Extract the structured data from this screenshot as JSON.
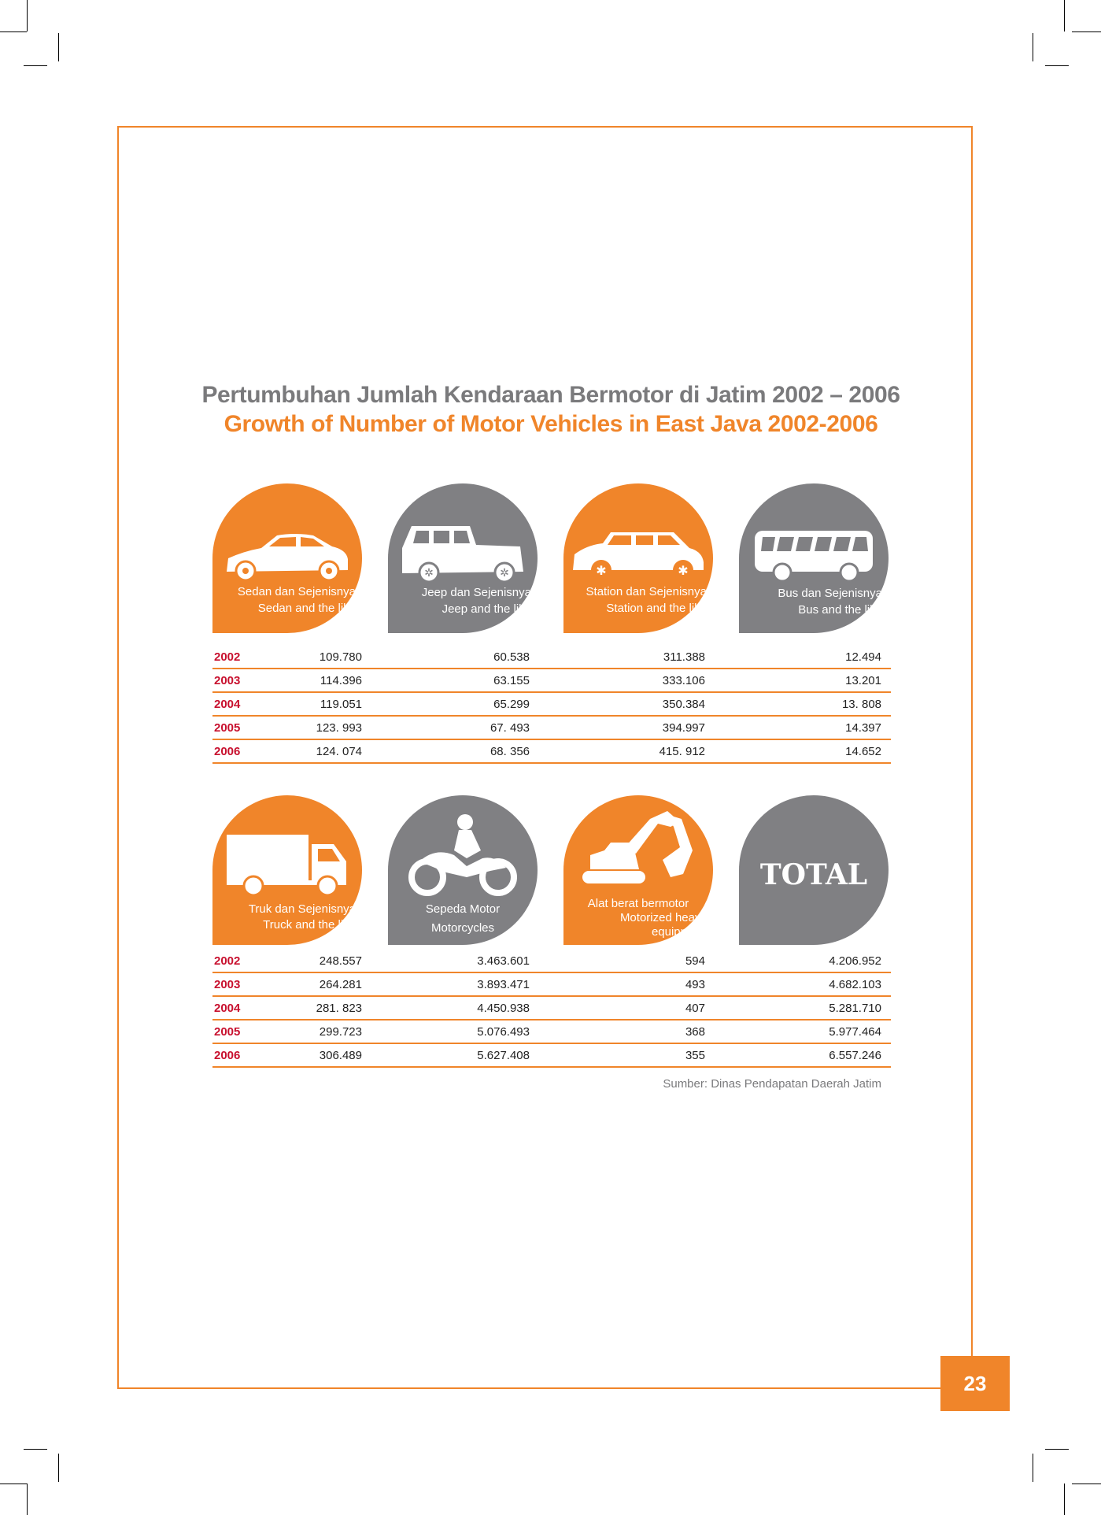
{
  "page": {
    "number": "23"
  },
  "title": {
    "indonesian": "Pertumbuhan Jumlah Kendaraan Bermotor di Jatim 2002 – 2006",
    "english": "Growth of Number of Motor Vehicles in East Java 2002-2006"
  },
  "colors": {
    "accent": "#f0852a",
    "gray": "#808083",
    "year": "#c8102e"
  },
  "top_categories": [
    {
      "icon": "sedan-icon",
      "label_id": "Sedan dan Sejenisnya",
      "label_en": "Sedan and the like",
      "color": "orange"
    },
    {
      "icon": "jeep-icon",
      "label_id": "Jeep dan Sejenisnya",
      "label_en": "Jeep and the like",
      "color": "gray"
    },
    {
      "icon": "station-wagon-icon",
      "label_id": "Station dan Sejenisnya",
      "label_en": "Station and the like",
      "color": "orange"
    },
    {
      "icon": "bus-icon",
      "label_id": "Bus dan Sejenisnya",
      "label_en": "Bus and the like",
      "color": "gray"
    }
  ],
  "top_rows": [
    {
      "year": "2002",
      "values": [
        "109.780",
        "60.538",
        "311.388",
        "12.494"
      ]
    },
    {
      "year": "2003",
      "values": [
        "114.396",
        "63.155",
        "333.106",
        "13.201"
      ]
    },
    {
      "year": "2004",
      "values": [
        "119.051",
        "65.299",
        "350.384",
        "13. 808"
      ]
    },
    {
      "year": "2005",
      "values": [
        "123. 993",
        "67. 493",
        "394.997",
        "14.397"
      ]
    },
    {
      "year": "2006",
      "values": [
        "124.  074",
        "68. 356",
        "415. 912",
        "14.652"
      ]
    }
  ],
  "bottom_categories": [
    {
      "icon": "truck-icon",
      "label_id": "Truk dan Sejenisnya",
      "label_en": "Truck and the like",
      "color": "orange"
    },
    {
      "icon": "motorcycle-icon",
      "label_id": "Sepeda Motor",
      "label_en": "Motorcycles",
      "color": "gray"
    },
    {
      "icon": "excavator-icon",
      "label_id": "Alat berat bermotor",
      "label_en": "Motorized heavy equipment",
      "color": "orange"
    },
    {
      "icon": "total-badge",
      "label_id": "TOTAL",
      "color": "gray"
    }
  ],
  "bottom_rows": [
    {
      "year": "2002",
      "values": [
        "248.557",
        "3.463.601",
        "594",
        "4.206.952"
      ]
    },
    {
      "year": "2003",
      "values": [
        "264.281",
        "3.893.471",
        "493",
        "4.682.103"
      ]
    },
    {
      "year": "2004",
      "values": [
        "281. 823",
        "4.450.938",
        "407",
        "5.281.710"
      ]
    },
    {
      "year": "2005",
      "values": [
        "299.723",
        "5.076.493",
        "368",
        "5.977.464"
      ]
    },
    {
      "year": "2006",
      "values": [
        "306.489",
        "5.627.408",
        "355",
        "6.557.246"
      ]
    }
  ],
  "source": "Sumber: Dinas Pendapatan Daerah Jatim"
}
